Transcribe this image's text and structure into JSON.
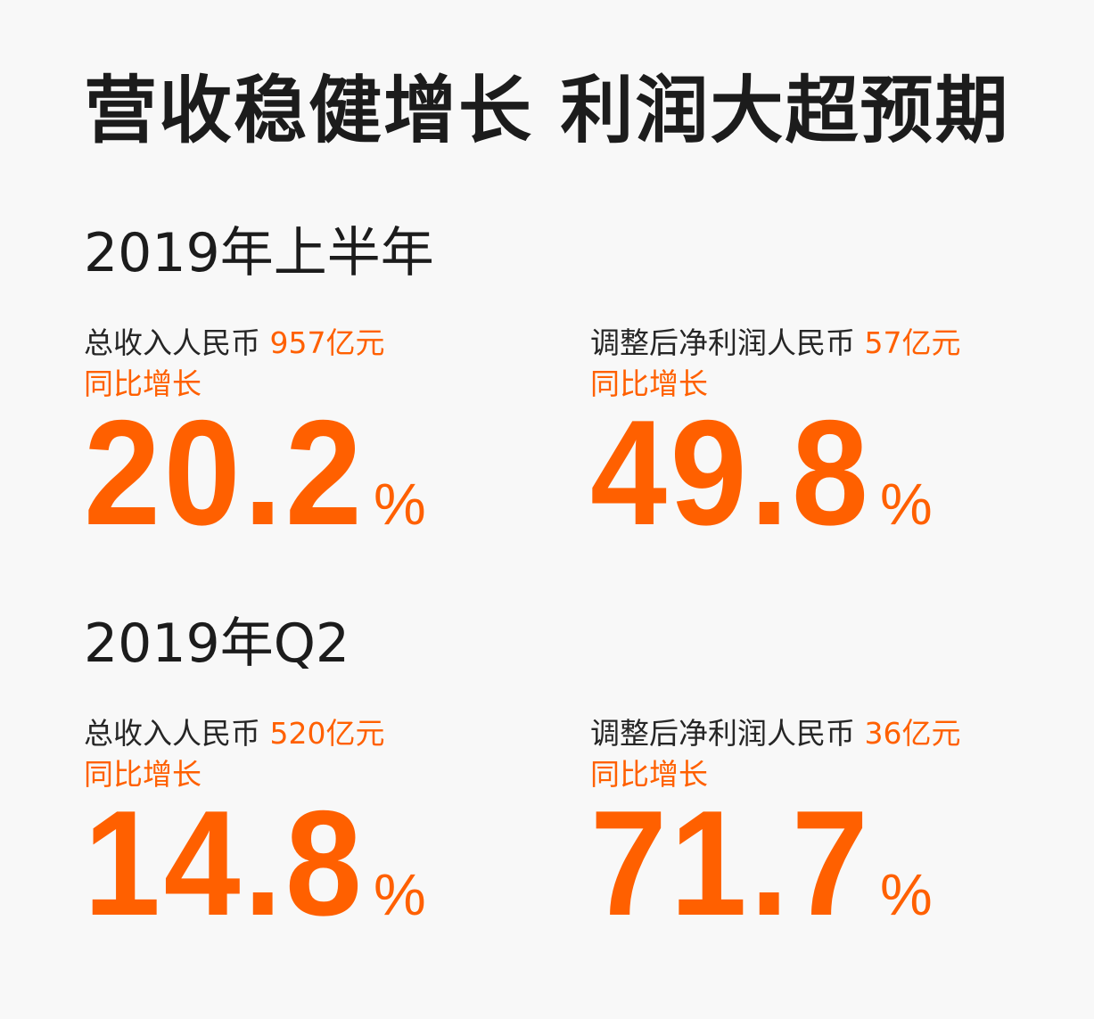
{
  "title": "营收稳健增长 利润大超预期",
  "sections": [
    {
      "heading": "2019年上半年",
      "stats": [
        {
          "label": "总收入人民币",
          "amount": "957亿元",
          "sub_label": "同比增长",
          "value": "20.2",
          "unit": "%"
        },
        {
          "label": "调整后净利润人民币",
          "amount": "57亿元",
          "sub_label": "同比增长",
          "value": "49.8",
          "unit": "%"
        }
      ]
    },
    {
      "heading": "2019年Q2",
      "stats": [
        {
          "label": "总收入人民币",
          "amount": "520亿元",
          "sub_label": "同比增长",
          "value": "14.8",
          "unit": "%"
        },
        {
          "label": "调整后净利润人民币",
          "amount": "36亿元",
          "sub_label": "同比增长",
          "value": "71.7",
          "unit": "%"
        }
      ]
    }
  ],
  "colors": {
    "accent": "#ff6000",
    "text": "#1c1c1c",
    "background": "#f8f8f8"
  }
}
